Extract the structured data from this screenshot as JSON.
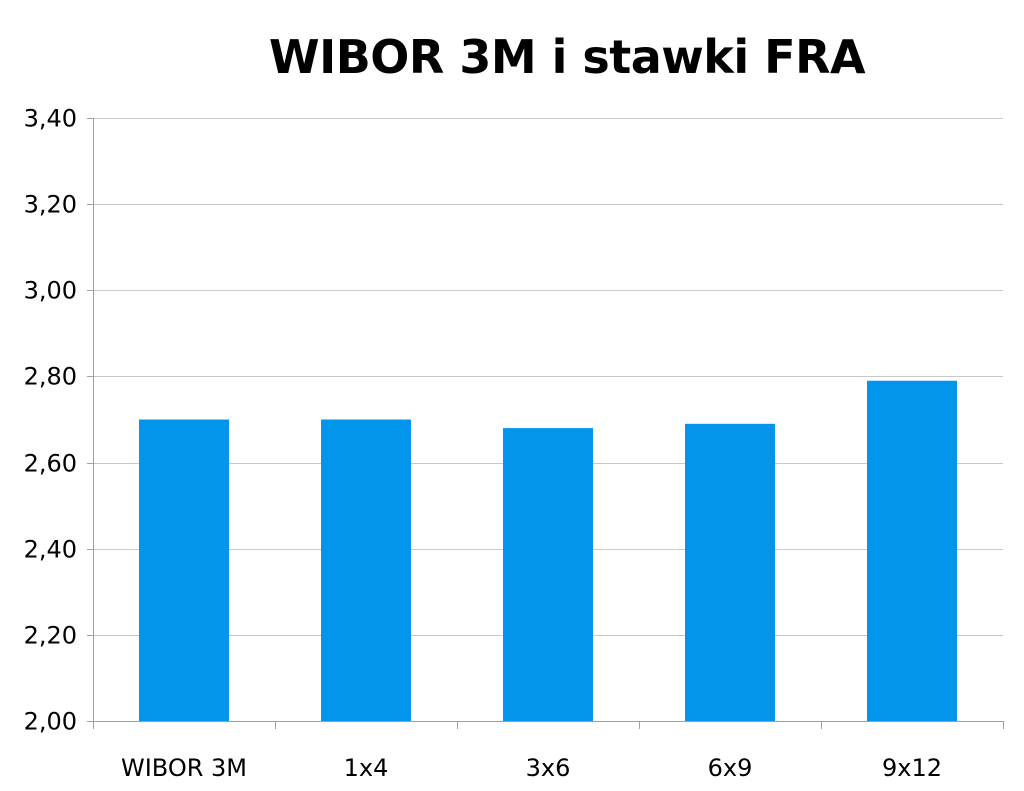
{
  "chart_data": {
    "type": "bar",
    "title": "WIBOR 3M i stawki FRA",
    "categories": [
      "WIBOR 3M",
      "1x4",
      "3x6",
      "6x9",
      "9x12"
    ],
    "series": [
      {
        "values": [
          2.7,
          2.7,
          2.68,
          2.69,
          2.79
        ]
      }
    ],
    "ylim": [
      2.0,
      3.4
    ],
    "yticks": [
      "2,00",
      "2,20",
      "2,40",
      "2,60",
      "2,80",
      "3,00",
      "3,20",
      "3,40"
    ],
    "ytick_values": [
      2.0,
      2.2,
      2.4,
      2.6,
      2.8,
      3.0,
      3.2,
      3.4
    ],
    "grid": true,
    "legend": "none",
    "bar_color": "#0394ec",
    "grid_color": "#c8c8c8"
  }
}
